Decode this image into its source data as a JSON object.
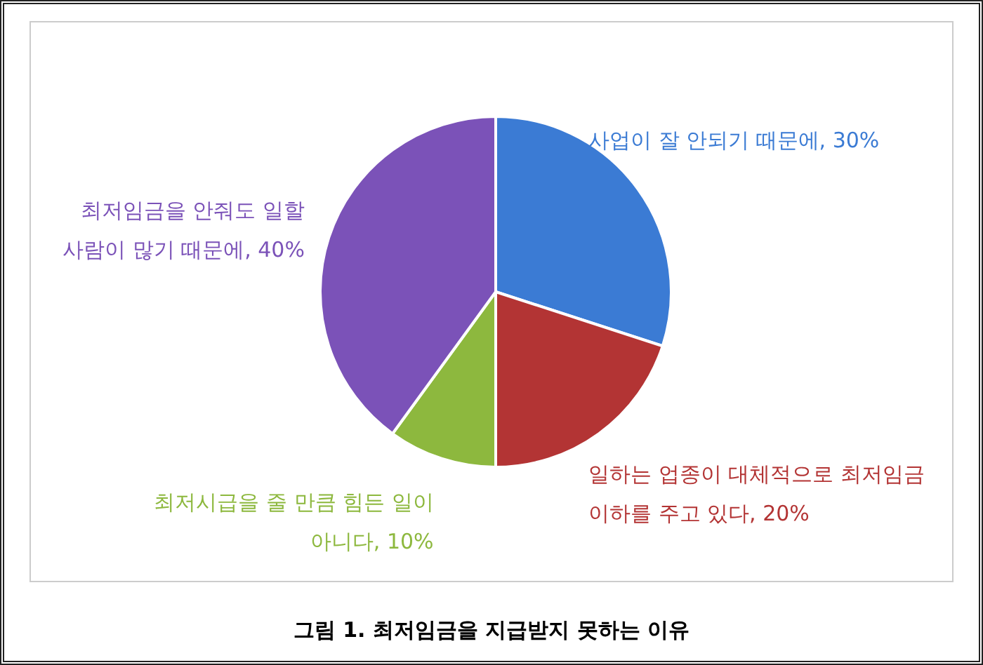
{
  "chart_data": {
    "type": "pie",
    "title": "그림 1. 최저임금을 지급받지 못하는 이유",
    "categories": [
      "사업이 잘 안되기 때문에",
      "일하는 업종이 대체적으로 최저임금 이하를 주고 있다",
      "최저시급을 줄 만큼 힘든 일이 아니다",
      "최저임금을 안줘도 일할 사람이 많기 때문에"
    ],
    "values": [
      30,
      20,
      10,
      40
    ],
    "value_labels": [
      "30%",
      "20%",
      "10%",
      "40%"
    ],
    "colors": [
      "#3b7bd4",
      "#b33434",
      "#8db83e",
      "#7b52b8"
    ]
  }
}
